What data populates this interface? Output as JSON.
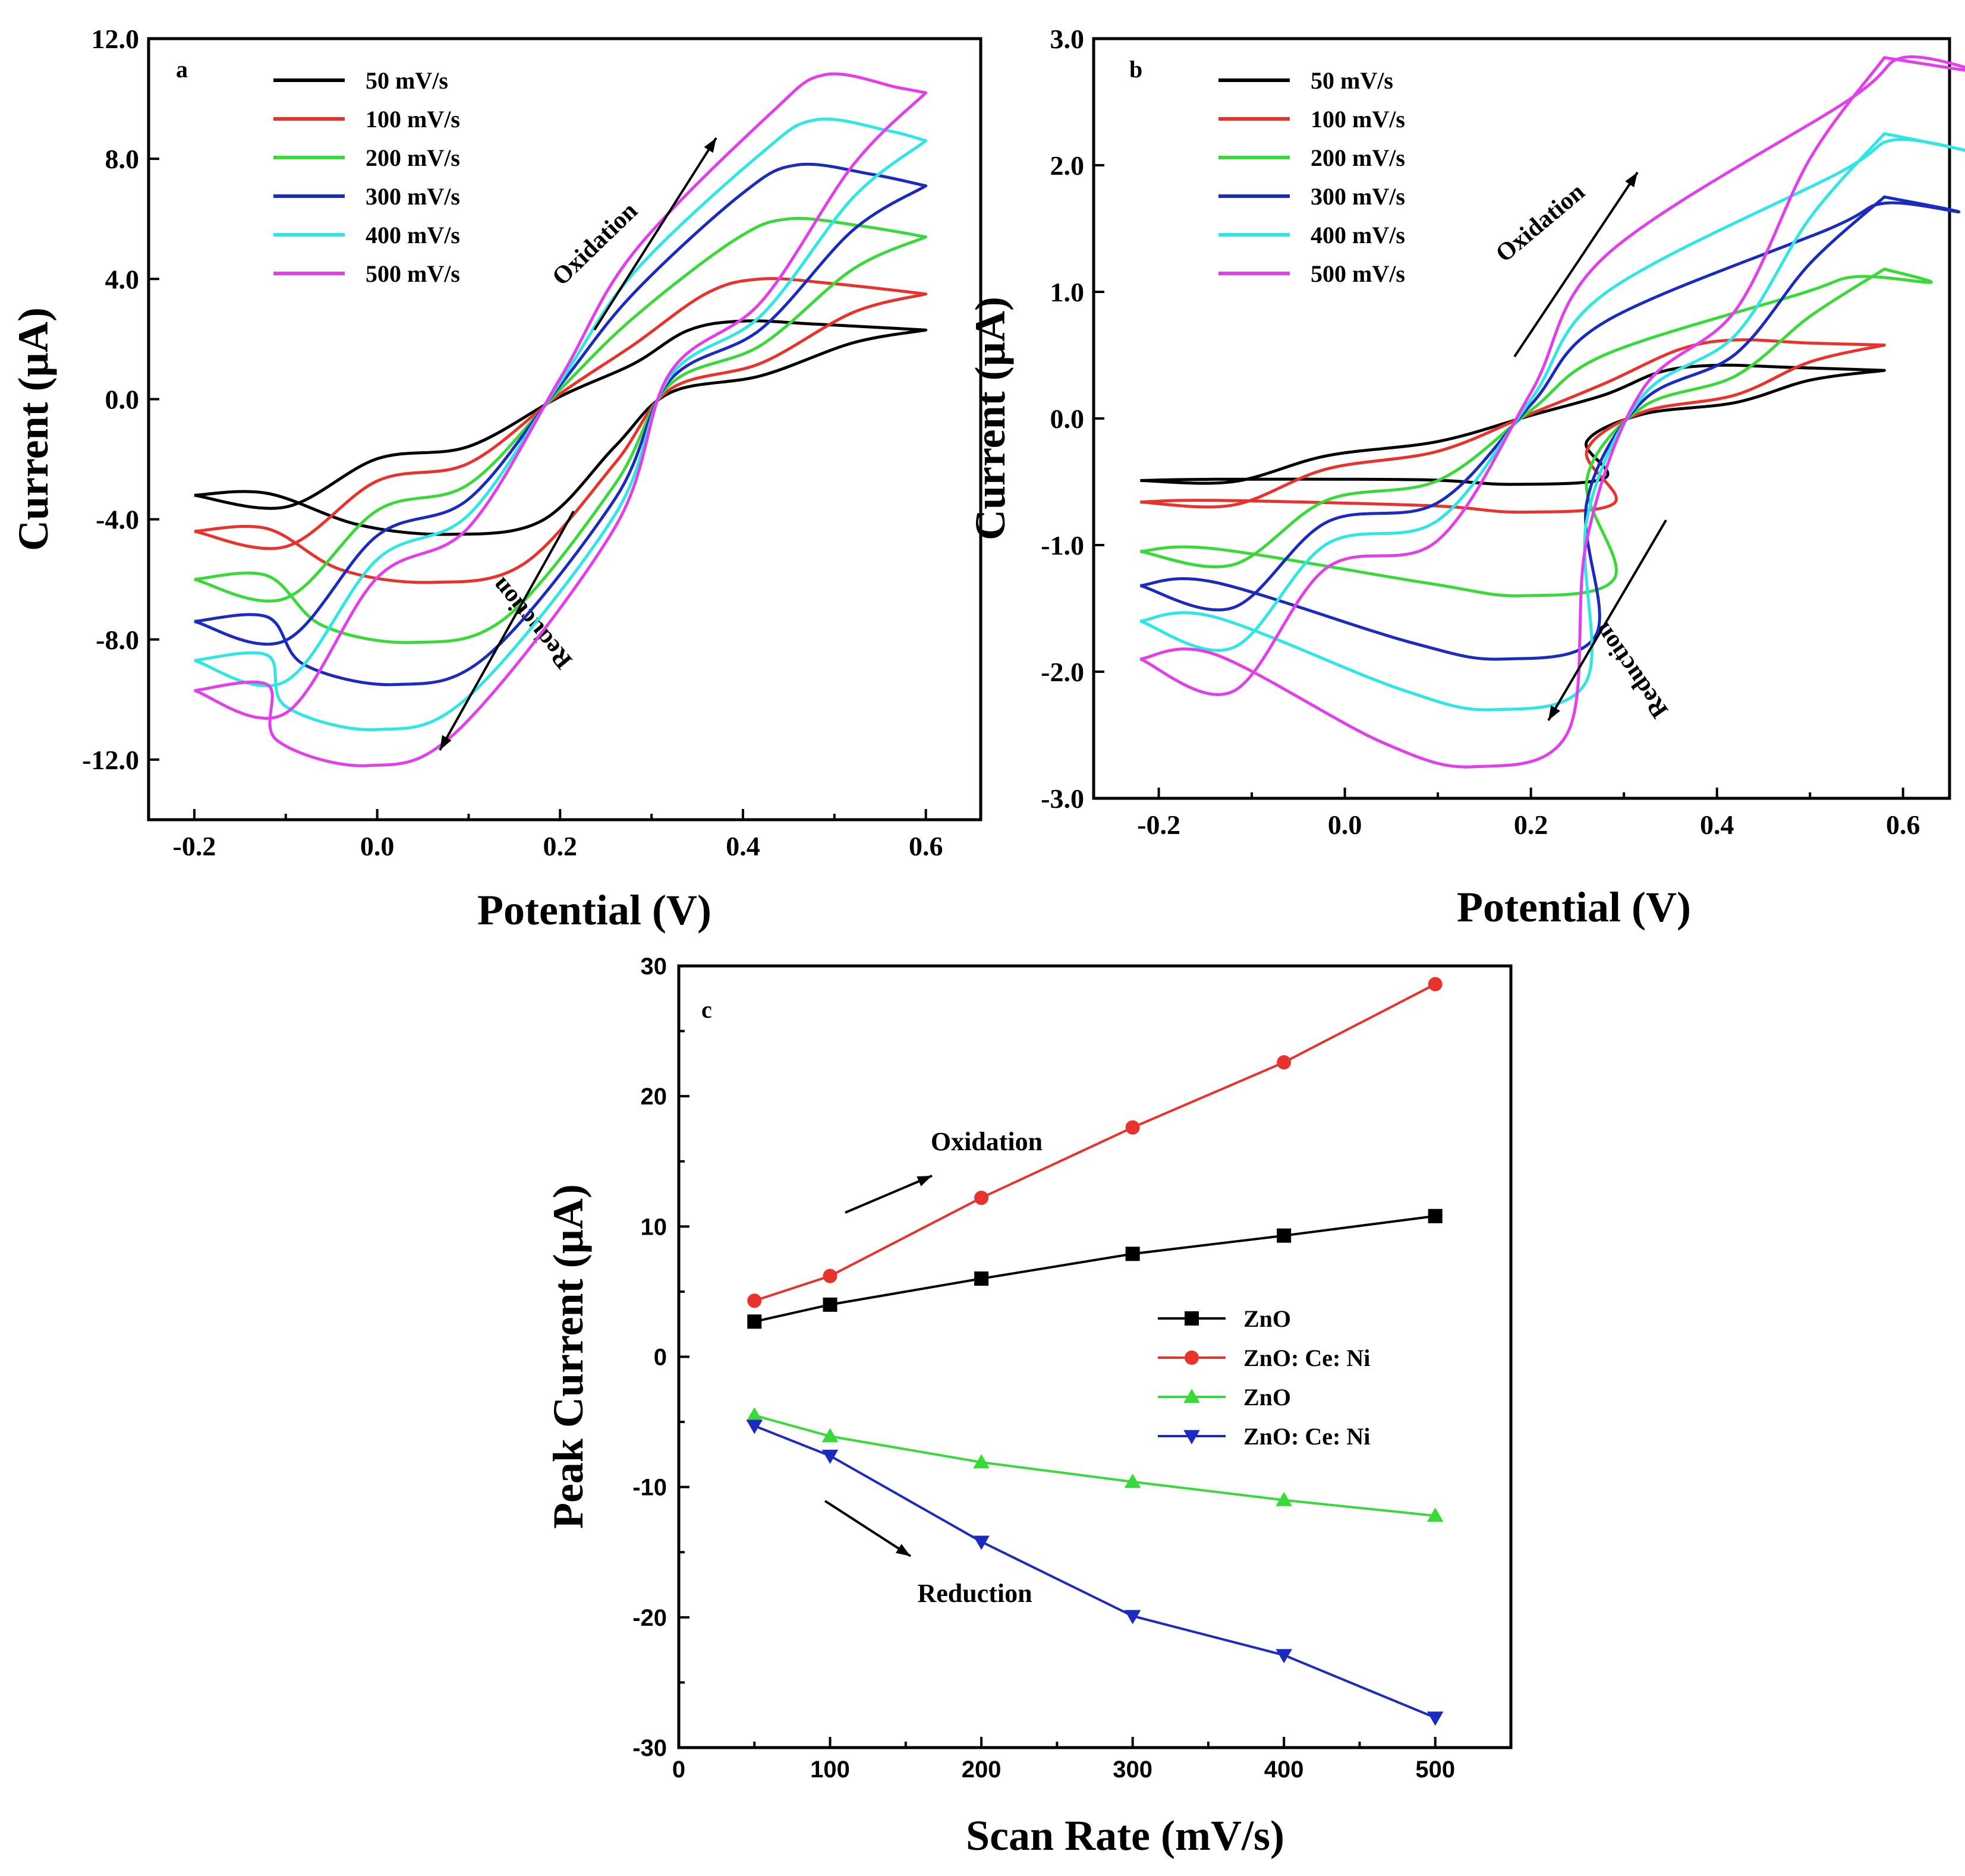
{
  "chart_data": [
    {
      "panel": "a",
      "type": "line",
      "xlabel": "Potential (V)",
      "ylabel": "Current (µA)",
      "xlim": [
        -0.25,
        0.66
      ],
      "ylim": [
        -14.0,
        12.0
      ],
      "xticks": [
        "-0.2",
        "0.0",
        "0.2",
        "0.4",
        "0.6"
      ],
      "yticks": [
        "12.0",
        "8.0",
        "4.0",
        "0.0",
        "-4.0",
        "-8.0",
        "-12.0"
      ],
      "legend": "top-left",
      "annotations": [
        "Oxidation",
        "Reduction"
      ],
      "series": [
        {
          "name": "50 mV/s",
          "color": "#000000",
          "anodic_peak": [
            0.4,
            2.6
          ],
          "cathodic_peak": [
            0.08,
            -4.5
          ],
          "start_current": -3.2,
          "end_current": 2.3
        },
        {
          "name": "100 mV/s",
          "color": "#e8322c",
          "anodic_peak": [
            0.42,
            4.0
          ],
          "cathodic_peak": [
            0.06,
            -6.1
          ],
          "start_current": -4.4,
          "end_current": 3.5
        },
        {
          "name": "200 mV/s",
          "color": "#39d93a",
          "anodic_peak": [
            0.45,
            6.0
          ],
          "cathodic_peak": [
            0.04,
            -8.1
          ],
          "start_current": -6.0,
          "end_current": 5.4
        },
        {
          "name": "300 mV/s",
          "color": "#1c2bbf",
          "anodic_peak": [
            0.46,
            7.8
          ],
          "cathodic_peak": [
            0.02,
            -9.5
          ],
          "start_current": -7.4,
          "end_current": 7.1
        },
        {
          "name": "400 mV/s",
          "color": "#2ee6e6",
          "anodic_peak": [
            0.48,
            9.3
          ],
          "cathodic_peak": [
            0.0,
            -11.0
          ],
          "start_current": -8.7,
          "end_current": 8.6
        },
        {
          "name": "500 mV/s",
          "color": "#e23ee9",
          "anodic_peak": [
            0.49,
            10.8
          ],
          "cathodic_peak": [
            -0.01,
            -12.2
          ],
          "start_current": -9.7,
          "end_current": 10.2
        }
      ]
    },
    {
      "panel": "b",
      "type": "line",
      "xlabel": "Potential (V)",
      "ylabel": "Current (µA)",
      "xlim": [
        -0.27,
        0.65
      ],
      "ylim": [
        -3.0,
        3.0
      ],
      "xticks": [
        "-0.2",
        "0.0",
        "0.2",
        "0.4",
        "0.6"
      ],
      "yticks": [
        "3.0",
        "2.0",
        "1.0",
        "0.0",
        "-1.0",
        "-2.0",
        "-3.0"
      ],
      "legend": "top-left",
      "annotations": [
        "Oxidation",
        "Reduction"
      ],
      "series": [
        {
          "name": "50 mV/s",
          "color": "#000000",
          "anodic_peak": [
            0.4,
            0.42
          ],
          "cathodic_peak": [
            0.18,
            -0.52
          ],
          "start_current": -0.49,
          "end_current": 0.38
        },
        {
          "name": "100 mV/s",
          "color": "#e8322c",
          "anodic_peak": [
            0.42,
            0.62
          ],
          "cathodic_peak": [
            0.19,
            -0.74
          ],
          "start_current": -0.66,
          "end_current": 0.58
        },
        {
          "name": "200 mV/s",
          "color": "#39d93a",
          "anodic_peak": [
            0.55,
            1.12
          ],
          "cathodic_peak": [
            0.19,
            -1.4
          ],
          "start_current": -1.05,
          "end_current": 1.18
        },
        {
          "name": "300 mV/s",
          "color": "#1c2bbf",
          "anodic_peak": [
            0.58,
            1.7
          ],
          "cathodic_peak": [
            0.17,
            -1.9
          ],
          "start_current": -1.32,
          "end_current": 1.75
        },
        {
          "name": "400 mV/s",
          "color": "#2ee6e6",
          "anodic_peak": [
            0.59,
            2.2
          ],
          "cathodic_peak": [
            0.16,
            -2.3
          ],
          "start_current": -1.6,
          "end_current": 2.25
        },
        {
          "name": "500 mV/s",
          "color": "#e23ee9",
          "anodic_peak": [
            0.6,
            2.85
          ],
          "cathodic_peak": [
            0.14,
            -2.75
          ],
          "start_current": -1.9,
          "end_current": 2.85
        }
      ]
    },
    {
      "panel": "c",
      "type": "line",
      "xlabel": "Scan Rate (mV/s)",
      "ylabel": "Peak Current (µA)",
      "xlim": [
        0,
        550
      ],
      "ylim": [
        -30,
        30
      ],
      "xticks": [
        "0",
        "100",
        "200",
        "300",
        "400",
        "500"
      ],
      "yticks": [
        "30",
        "20",
        "10",
        "0",
        "-10",
        "-20",
        "-30"
      ],
      "legend": "right",
      "annotations": [
        "Oxidation",
        "Reduction"
      ],
      "x": [
        50,
        100,
        200,
        300,
        400,
        500
      ],
      "series": [
        {
          "name": "ZnO",
          "color": "#000000",
          "marker": "square",
          "values": [
            2.7,
            4.0,
            6.0,
            7.9,
            9.3,
            10.8
          ]
        },
        {
          "name": "ZnO: Ce: Ni",
          "color": "#e8322c",
          "marker": "circle",
          "values": [
            4.3,
            6.2,
            12.2,
            17.6,
            22.6,
            28.6
          ]
        },
        {
          "name": "ZnO",
          "color": "#39d93a",
          "marker": "triangle-up",
          "values": [
            -4.5,
            -6.1,
            -8.1,
            -9.6,
            -11.0,
            -12.2
          ]
        },
        {
          "name": "ZnO: Ce: Ni",
          "color": "#1c2bbf",
          "marker": "triangle-down",
          "values": [
            -5.3,
            -7.6,
            -14.2,
            -19.9,
            -22.9,
            -27.7
          ]
        }
      ]
    }
  ]
}
